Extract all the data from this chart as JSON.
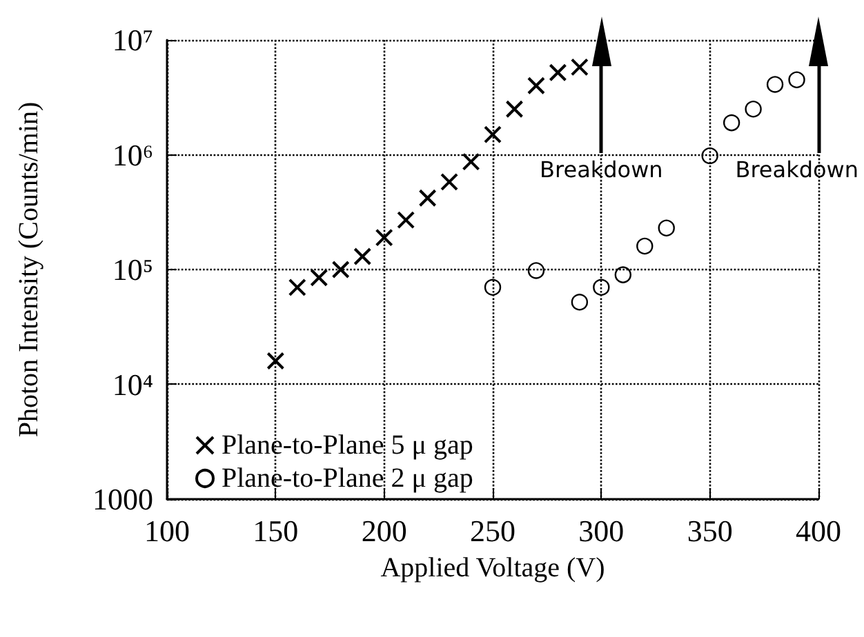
{
  "chart_data": {
    "type": "scatter",
    "xlabel": "Applied Voltage (V)",
    "ylabel": "Photon Intensity (Counts/min)",
    "series": [
      {
        "name": "Plane-to-Plane 5 μ gap",
        "color": "#000000",
        "marker": "cross",
        "x": [
          150,
          160,
          170,
          180,
          190,
          200,
          210,
          220,
          230,
          240,
          250,
          260,
          270,
          280,
          290
        ],
        "values": [
          16000,
          70000,
          85000,
          100000,
          130000,
          190000,
          270000,
          420000,
          580000,
          870000,
          1500000,
          2500000,
          4000000,
          5200000,
          5800000
        ]
      },
      {
        "name": "Plane-to-Plane 2 μ gap",
        "color": "#000000",
        "marker": "circle",
        "x": [
          250,
          270,
          290,
          300,
          310,
          320,
          330,
          350,
          360,
          370,
          380,
          390
        ],
        "values": [
          70000,
          98000,
          52000,
          70000,
          90000,
          160000,
          230000,
          980000,
          1900000,
          2500000,
          4100000,
          4500000
        ]
      }
    ],
    "ref_lines": [
      {
        "axis": "x",
        "value": 300,
        "label": "Breakdown",
        "color": "#000000",
        "line_style": "solid"
      },
      {
        "axis": "x",
        "value": 400,
        "label": "Breakdown",
        "color": "#000000",
        "line_style": "solid"
      }
    ],
    "xlim": [
      100,
      400
    ],
    "xticks": [
      100,
      150,
      200,
      250,
      300,
      350,
      400
    ],
    "ylim": [
      1000,
      10000000
    ],
    "yticks": [
      1000,
      {
        "value": 10000,
        "label": "10⁴"
      },
      {
        "value": 100000,
        "label": "10⁵"
      },
      {
        "value": 1000000,
        "label": "10⁶"
      },
      {
        "value": 10000000,
        "label": "10⁷"
      }
    ],
    "log": "y",
    "grid": true,
    "legend": "bottom left"
  }
}
